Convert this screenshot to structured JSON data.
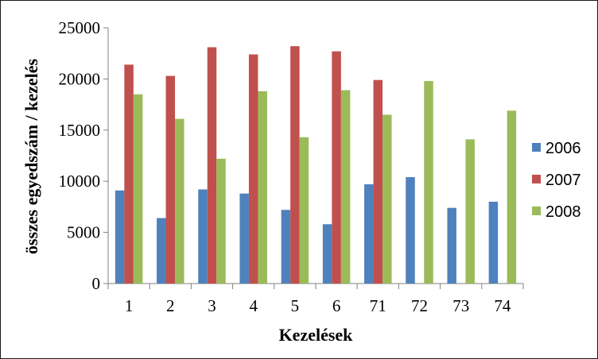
{
  "chart_data": {
    "type": "bar",
    "title": "",
    "xlabel": "Kezelések",
    "ylabel": "összes egyedszám / kezelés",
    "ylim": [
      0,
      25000
    ],
    "yticks": [
      0,
      5000,
      10000,
      15000,
      20000,
      25000
    ],
    "categories": [
      "1",
      "2",
      "3",
      "4",
      "5",
      "6",
      "71",
      "72",
      "73",
      "74"
    ],
    "series": [
      {
        "name": "2006",
        "color": "#4F81BD",
        "values": [
          9100,
          6400,
          9200,
          8800,
          7200,
          5800,
          9700,
          10400,
          7400,
          8000
        ]
      },
      {
        "name": "2007",
        "color": "#C0504D",
        "values": [
          21400,
          20300,
          23100,
          22400,
          23200,
          22700,
          19900,
          0,
          0,
          0
        ]
      },
      {
        "name": "2008",
        "color": "#9BBB59",
        "values": [
          18500,
          16100,
          12200,
          18800,
          14300,
          18900,
          16500,
          19800,
          14100,
          16900
        ]
      }
    ],
    "grid": false,
    "legend_position": "right"
  }
}
